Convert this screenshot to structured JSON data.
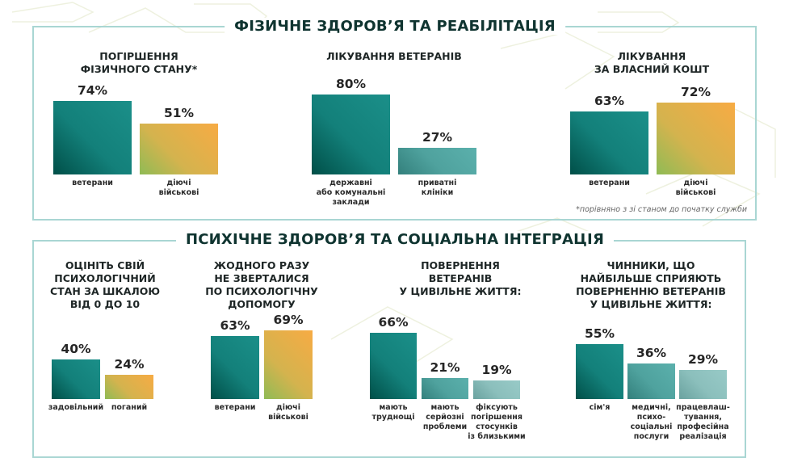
{
  "sections": [
    {
      "title": "ФІЗИЧНЕ ЗДОРОВ’Я ТА РЕАБІЛІТАЦІЯ"
    },
    {
      "title": "ПСИХІЧНЕ ЗДОРОВ’Я ТА СОЦІАЛЬНА ІНТЕГРАЦІЯ"
    }
  ],
  "footnote": "*порівняно з зі станом до початку служби",
  "colors": {
    "teal": "#1b8f89",
    "teal_dark": "#004f48",
    "orange": "#f7ab44",
    "green": "#8fbb55",
    "mid_teal": "#4fa29e",
    "light_teal": "#98cac7",
    "border": "#a9d6d3"
  },
  "chart_data": [
    {
      "type": "bar",
      "section": 0,
      "title_lines": [
        "ПОГІРШЕННЯ",
        "ФІЗИЧНОГО СТАНУ*"
      ],
      "unit": "%",
      "bars": [
        {
          "label": [
            "ветерани"
          ],
          "value": 74,
          "color": "teal"
        },
        {
          "label": [
            "діючі",
            "військові"
          ],
          "value": 51,
          "color": "orange"
        }
      ]
    },
    {
      "type": "bar",
      "section": 0,
      "title_lines": [
        "ЛІКУВАННЯ ВЕТЕРАНІВ"
      ],
      "unit": "%",
      "bars": [
        {
          "label": [
            "державні",
            "або комунальні",
            "заклади"
          ],
          "value": 80,
          "color": "teal"
        },
        {
          "label": [
            "приватні",
            "клініки"
          ],
          "value": 27,
          "color": "mid"
        }
      ]
    },
    {
      "type": "bar",
      "section": 0,
      "title_lines": [
        "ЛІКУВАННЯ",
        "ЗА ВЛАСНИЙ КОШТ"
      ],
      "unit": "%",
      "bars": [
        {
          "label": [
            "ветерани"
          ],
          "value": 63,
          "color": "teal"
        },
        {
          "label": [
            "діючі",
            "військові"
          ],
          "value": 72,
          "color": "orange"
        }
      ]
    },
    {
      "type": "bar",
      "section": 1,
      "title_lines": [
        "ОЦІНІТЬ СВІЙ",
        "ПСИХОЛОГІЧНИЙ",
        "СТАН ЗА ШКАЛОЮ",
        "ВІД 0 ДО 10"
      ],
      "unit": "%",
      "bars": [
        {
          "label": [
            "задовільний"
          ],
          "value": 40,
          "color": "teal"
        },
        {
          "label": [
            "поганий"
          ],
          "value": 24,
          "color": "orange"
        }
      ]
    },
    {
      "type": "bar",
      "section": 1,
      "title_lines": [
        "ЖОДНОГО РАЗУ",
        "НЕ ЗВЕРТАЛИСЯ",
        "ПО ПСИХОЛОГІЧНУ",
        "ДОПОМОГУ"
      ],
      "unit": "%",
      "bars": [
        {
          "label": [
            "ветерани"
          ],
          "value": 63,
          "color": "teal"
        },
        {
          "label": [
            "діючі",
            "військові"
          ],
          "value": 69,
          "color": "orange"
        }
      ]
    },
    {
      "type": "bar",
      "section": 1,
      "title_lines": [
        "ПОВЕРНЕННЯ",
        "ВЕТЕРАНІВ",
        "У ЦИВІЛЬНЕ ЖИТТЯ:"
      ],
      "unit": "%",
      "bars": [
        {
          "label": [
            "мають",
            "труднощі"
          ],
          "value": 66,
          "color": "teal"
        },
        {
          "label": [
            "мають",
            "серйозні",
            "проблеми"
          ],
          "value": 21,
          "color": "mid"
        },
        {
          "label": [
            "фіксують",
            "погіршення",
            "стосунків",
            "із близькими"
          ],
          "value": 19,
          "color": "light"
        }
      ]
    },
    {
      "type": "bar",
      "section": 1,
      "title_lines": [
        "ЧИННИКИ, ЩО",
        "НАЙБІЛЬШЕ СПРИЯЮТЬ",
        "ПОВЕРНЕННЮ ВЕТЕРАНІВ",
        "У ЦИВІЛЬНЕ ЖИТТЯ:"
      ],
      "unit": "%",
      "bars": [
        {
          "label": [
            "сім'я"
          ],
          "value": 55,
          "color": "teal"
        },
        {
          "label": [
            "медичні,",
            "психо-",
            "соціальні",
            "послуги"
          ],
          "value": 36,
          "color": "mid"
        },
        {
          "label": [
            "працевлаш-",
            "тування,",
            "професійна",
            "реалізація"
          ],
          "value": 29,
          "color": "light"
        }
      ]
    }
  ]
}
